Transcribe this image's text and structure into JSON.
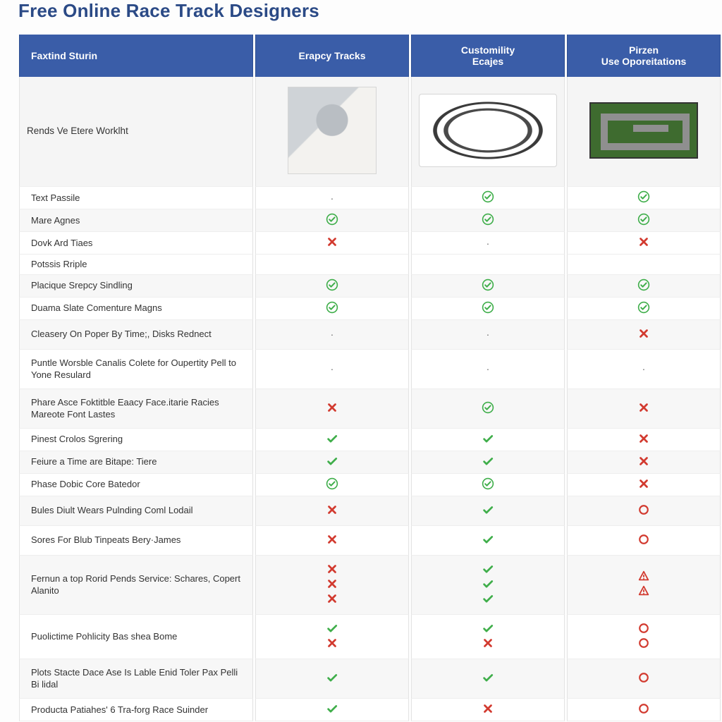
{
  "title": "Free Online Race Track Designers",
  "colors": {
    "header_bg": "#3a5da8",
    "header_text": "#ffffff",
    "check_green": "#3fae4a",
    "cross_red": "#d23a2f",
    "circle_red": "#d23a2f",
    "warn_red": "#d23a2f",
    "row_border": "#e3e3e3",
    "alt_row_bg": "#f7f7f7",
    "page_bg": "#fdfdfd"
  },
  "columns": [
    {
      "key": "feature",
      "label": "Faxtind Sturin"
    },
    {
      "key": "c1",
      "label": "Erapcy Tracks"
    },
    {
      "key": "c2",
      "label": "Customility Ecajes"
    },
    {
      "key": "c3",
      "label": "Pirzen Use Oporeitations"
    }
  ],
  "image_row_label": "Rends Ve Etere Worklht",
  "marks_legend": {
    "check_circle": "green check inside circle",
    "check": "green check (no circle)",
    "cross": "red bold X",
    "dash": "small centered dash",
    "circle": "red hollow circle",
    "warn": "red warning triangle/A",
    "blank": "empty"
  },
  "rows": [
    {
      "label": "Text Passile",
      "c1": "dash",
      "c2": "check_circle",
      "c3": "check_circle",
      "band": "a",
      "height": "short"
    },
    {
      "label": "Mare Agnes",
      "c1": "check_circle",
      "c2": "check_circle",
      "c3": "check_circle",
      "band": "b",
      "height": "short"
    },
    {
      "label": "Dovk Ard Tiaes",
      "c1": "cross",
      "c2": "dash",
      "c3": "cross",
      "band": "a",
      "height": "short"
    },
    {
      "label": "Potssis Rriple",
      "c1": "blank",
      "c2": "blank",
      "c3": "blank",
      "band": "a",
      "height": "short"
    },
    {
      "label": "Placique Srepcy Sindling",
      "c1": "check_circle",
      "c2": "check_circle",
      "c3": "check_circle",
      "band": "b",
      "height": "short"
    },
    {
      "label": "Duama Slate Comenture Magns",
      "c1": "check_circle",
      "c2": "check_circle",
      "c3": "check_circle",
      "band": "a",
      "height": "short"
    },
    {
      "label": "Cleasery On Poper By Time;, Disks Rednect",
      "c1": "dash",
      "c2": "dash",
      "c3": "cross",
      "band": "b",
      "height": "tall"
    },
    {
      "label": "Puntle Worsble Canalis Colete for Oupertity Pell to Yone Resulard",
      "c1": "dash",
      "c2": "dash",
      "c3": "dash",
      "band": "a",
      "height": "tall"
    },
    {
      "label": "Phare Asce Foktitble Eaacy Face.itarie Racies Mareote Font Lastes",
      "c1": "cross",
      "c2": "check_circle",
      "c3": "cross",
      "band": "b",
      "height": "tall"
    },
    {
      "label": "Pinest Crolos Sgrering",
      "c1": "check",
      "c2": "check",
      "c3": "cross",
      "band": "a",
      "height": "short"
    },
    {
      "label": "Feiure a Time are Bitape: Tiere",
      "c1": "check",
      "c2": "check",
      "c3": "cross",
      "band": "b",
      "height": "short"
    },
    {
      "label": "Phase Dobic Core Batedor",
      "c1": "check_circle",
      "c2": "check_circle",
      "c3": "cross",
      "band": "a",
      "height": "short"
    },
    {
      "label": "Bules Diult Wears Pulnding Coml Lodail",
      "c1": "cross",
      "c2": "check",
      "c3": "circle",
      "band": "b",
      "height": "tall"
    },
    {
      "label": "Sores For Blub Tinpeats Bery·James",
      "c1": "cross",
      "c2": "check",
      "c3": "circle",
      "band": "a",
      "height": "tall"
    },
    {
      "label": "Fernun a top Rorid Pends Service: Schares, Copert Alanito",
      "c1": "cross cross cross",
      "c2": "check check check",
      "c3": "warn warn",
      "band": "b",
      "height": "tall",
      "stack": true
    },
    {
      "label": "Puolictime Pohlicity Bas shea Bome",
      "c1": "check cross",
      "c2": "check cross",
      "c3": "circle circle",
      "band": "a",
      "height": "tall",
      "stack": true
    },
    {
      "label": "Plots Stacte Dace Ase Is Lable Enid Toler Pax Pelli Bi lidal",
      "c1": "check",
      "c2": "check",
      "c3": "circle",
      "band": "b",
      "height": "tall"
    },
    {
      "label": "Producta Patiahes' 6 Tra-forg Race Suinder",
      "c1": "check",
      "c2": "cross",
      "c3": "circle",
      "band": "a",
      "height": "short"
    }
  ]
}
